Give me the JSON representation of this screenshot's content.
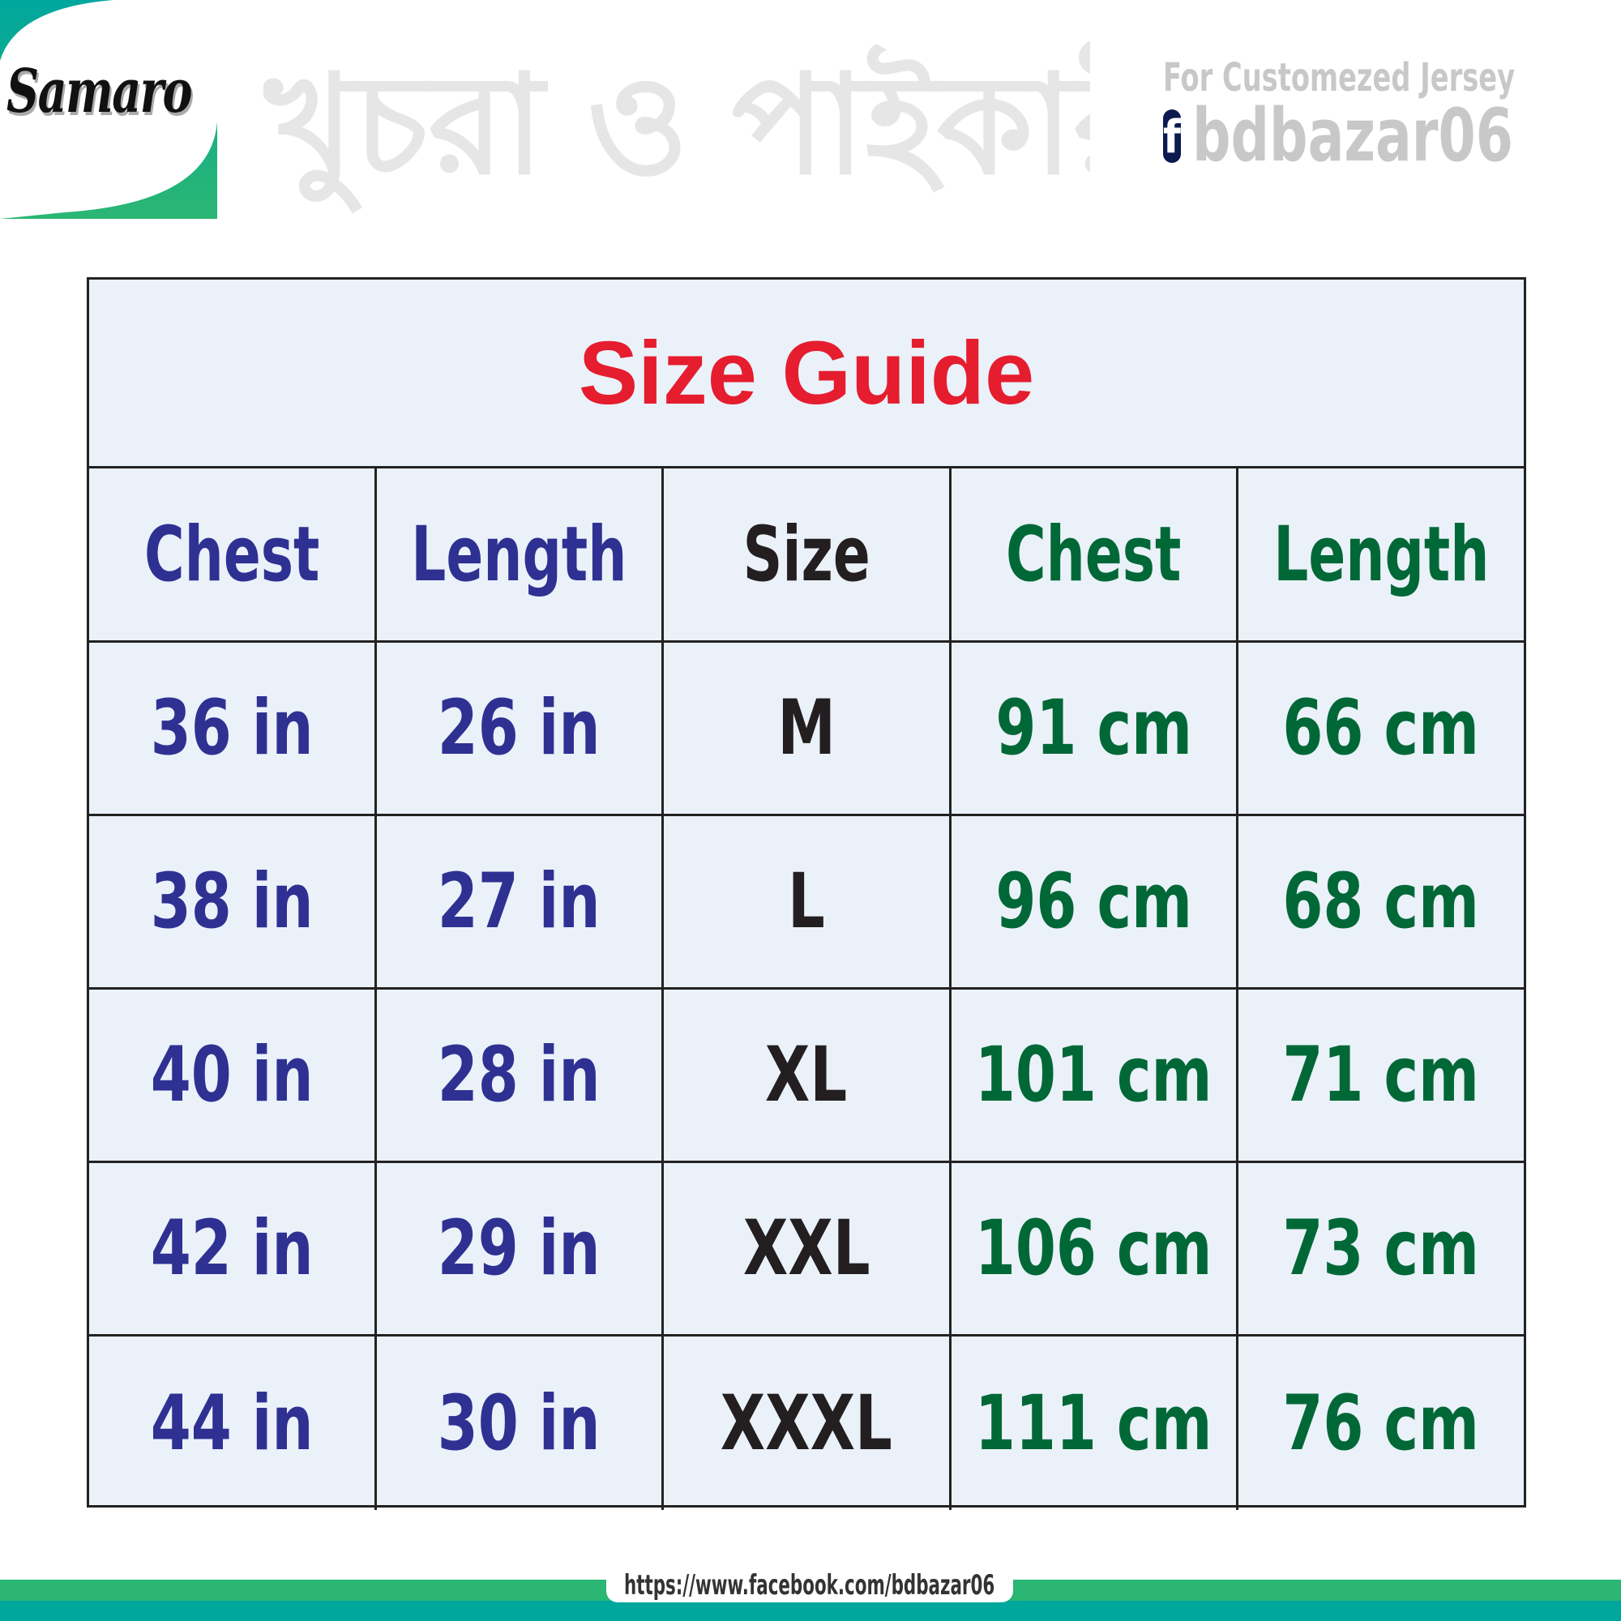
{
  "logo": {
    "text": "Samaro",
    "colors": {
      "green": "#2bb673",
      "teal": "#00a79d"
    }
  },
  "watermark": {
    "text": "খুচরা ও পাইকারী"
  },
  "promo": {
    "tagline": "For Customezed Jersey",
    "icon": "facebook-icon",
    "handle": "bdbazar06"
  },
  "table": {
    "title": "Size Guide",
    "headers": [
      "Chest",
      "Length",
      "Size",
      "Chest",
      "Length"
    ],
    "rows": [
      [
        "36 in",
        "26 in",
        "M",
        "91 cm",
        "66 cm"
      ],
      [
        "38 in",
        "27 in",
        "L",
        "96 cm",
        "68 cm"
      ],
      [
        "40 in",
        "28 in",
        "XL",
        "101 cm",
        "71 cm"
      ],
      [
        "42 in",
        "29 in",
        "XXL",
        "106 cm",
        "73 cm"
      ],
      [
        "44 in",
        "30 in",
        "XXXL",
        "111 cm",
        "76 cm"
      ]
    ],
    "colors": {
      "title": "#e51d2e",
      "inches": "#2e3192",
      "size": "#231f20",
      "cm": "#006837",
      "background": "#ebf1f9"
    }
  },
  "footer": {
    "url": "https://www.facebook.com/bdbazar06"
  }
}
